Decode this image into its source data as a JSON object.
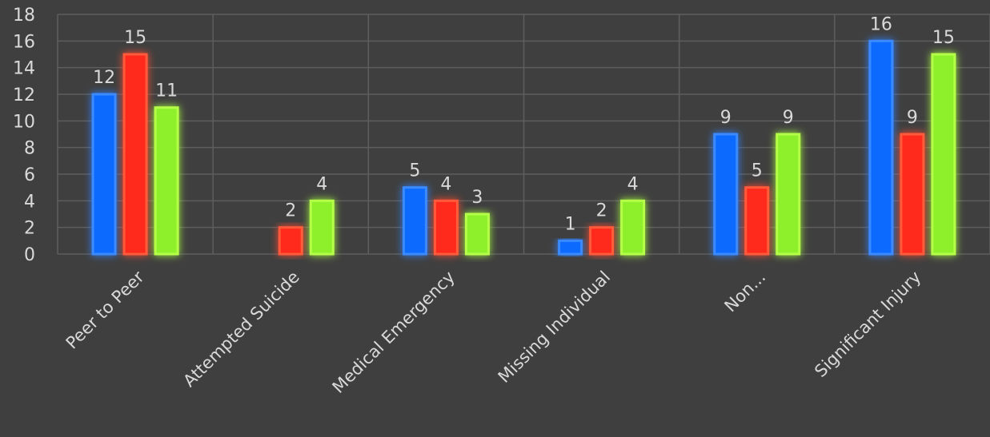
{
  "chart_data": {
    "type": "bar",
    "title": "",
    "xlabel": "",
    "ylabel": "",
    "ylim": [
      0,
      18
    ],
    "yticks": [
      0,
      2,
      4,
      6,
      8,
      10,
      12,
      14,
      16,
      18
    ],
    "grid": true,
    "legend": "none",
    "categories": [
      "Peer to Peer",
      "Attempted Suicide",
      "Medical Emergency",
      "Missing Individual",
      "Non...",
      "Significant Injury"
    ],
    "series": [
      {
        "color": "#0d6bff",
        "glow": "#3b8bff",
        "values": [
          12,
          null,
          5,
          1,
          9,
          16
        ]
      },
      {
        "color": "#ff2a1a",
        "glow": "#ff5a3a",
        "values": [
          15,
          2,
          4,
          2,
          5,
          9
        ]
      },
      {
        "color": "#8ef02a",
        "glow": "#b6ff4a",
        "values": [
          11,
          4,
          3,
          4,
          9,
          15
        ]
      }
    ]
  }
}
